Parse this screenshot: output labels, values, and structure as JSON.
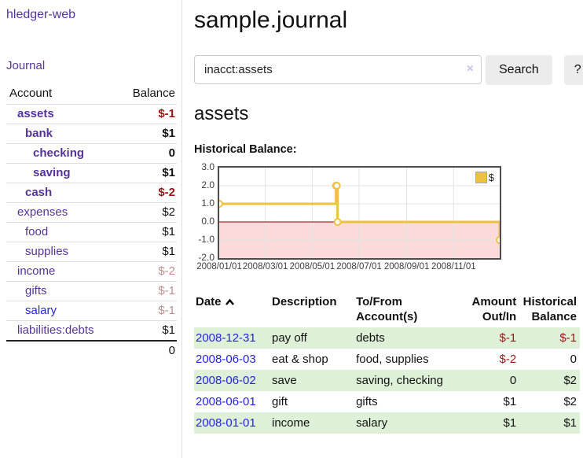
{
  "app": {
    "brand": "hledger-web"
  },
  "nav": {
    "journal": "Journal"
  },
  "sidebar": {
    "columns": {
      "account": "Account",
      "balance": "Balance"
    },
    "accounts": [
      {
        "name": "assets",
        "depth": 0,
        "bold": true,
        "balance": "$-1",
        "bal_class": "neg-strong"
      },
      {
        "name": "bank",
        "depth": 1,
        "bold": true,
        "balance": "$1",
        "bal_class": ""
      },
      {
        "name": "checking",
        "depth": 2,
        "bold": true,
        "balance": "0",
        "bal_class": ""
      },
      {
        "name": "saving",
        "depth": 2,
        "bold": true,
        "balance": "$1",
        "bal_class": ""
      },
      {
        "name": "cash",
        "depth": 1,
        "bold": true,
        "balance": "$-2",
        "bal_class": "neg-strong"
      },
      {
        "name": "expenses",
        "depth": 0,
        "bold": false,
        "balance": "$2",
        "bal_class": ""
      },
      {
        "name": "food",
        "depth": 1,
        "bold": false,
        "balance": "$1",
        "bal_class": ""
      },
      {
        "name": "supplies",
        "depth": 1,
        "bold": false,
        "balance": "$1",
        "bal_class": ""
      },
      {
        "name": "income",
        "depth": 0,
        "bold": false,
        "balance": "$-2",
        "bal_class": "neg-soft"
      },
      {
        "name": "gifts",
        "depth": 1,
        "bold": false,
        "balance": "$-1",
        "bal_class": "neg-soft"
      },
      {
        "name": "salary",
        "depth": 1,
        "bold": false,
        "balance": "$-1",
        "bal_class": "neg-soft",
        "blue": true
      },
      {
        "name": "liabilities:debts",
        "depth": 0,
        "bold": false,
        "balance": "$1",
        "bal_class": ""
      }
    ],
    "total": "0"
  },
  "main": {
    "title": "sample.journal",
    "search": {
      "value": "inacct:assets",
      "clear_icon": "×",
      "button": "Search",
      "help_button": "?"
    },
    "account_heading": "assets",
    "chart_label": "Historical Balance:"
  },
  "chart_data": {
    "type": "line",
    "title": "Historical Balance:",
    "series": [
      {
        "name": "$",
        "style": "step",
        "color": "#edc240",
        "points": [
          [
            "2008/01/01",
            1
          ],
          [
            "2008/06/01",
            2
          ],
          [
            "2008/06/02",
            2
          ],
          [
            "2008/06/03",
            0
          ],
          [
            "2008/12/31",
            -1
          ]
        ]
      }
    ],
    "x_ticks": [
      "2008/01/01",
      "2008/03/01",
      "2008/05/01",
      "2008/07/01",
      "2008/09/01",
      "2008/11/01"
    ],
    "y_ticks": [
      3.0,
      2.0,
      1.0,
      0.0,
      -1.0,
      -2.0
    ],
    "ylim": [
      -2,
      3
    ],
    "xlim": [
      "2008/01/01",
      "2008/12/31"
    ],
    "grid": true,
    "legend": [
      "$"
    ],
    "legend_position": "top-right",
    "negative_region_color": "#fbdada",
    "zero_line_color": "#8b0000",
    "grid_color": "#e3e3e3"
  },
  "register": {
    "columns": [
      "Date",
      "Description",
      "To/From Account(s)",
      "Amount Out/In",
      "Historical Balance"
    ],
    "sort": {
      "column": "Date",
      "direction": "asc"
    },
    "rows": [
      {
        "date": "2008-12-31",
        "description": "pay off",
        "accounts": "debts",
        "amount": "$-1",
        "amount_neg": true,
        "balance": "$-1",
        "balance_neg": true
      },
      {
        "date": "2008-06-03",
        "description": "eat & shop",
        "accounts": "food, supplies",
        "amount": "$-2",
        "amount_neg": true,
        "balance": "0",
        "balance_neg": false
      },
      {
        "date": "2008-06-02",
        "description": "save",
        "accounts": "saving, checking",
        "amount": "0",
        "amount_neg": false,
        "balance": "$2",
        "balance_neg": false
      },
      {
        "date": "2008-06-01",
        "description": "gift",
        "accounts": "gifts",
        "amount": "$1",
        "amount_neg": false,
        "balance": "$2",
        "balance_neg": false
      },
      {
        "date": "2008-01-01",
        "description": "income",
        "accounts": "salary",
        "amount": "$1",
        "amount_neg": false,
        "balance": "$1",
        "balance_neg": false
      }
    ]
  },
  "colors": {
    "link_purple": "#553399",
    "link_blue": "#2323dd",
    "negative_strong": "#991414",
    "negative_soft": "#bc8f8f",
    "row_stripe_green": "#dff0d8",
    "series_gold": "#edc240",
    "button_bg": "#ececec"
  }
}
